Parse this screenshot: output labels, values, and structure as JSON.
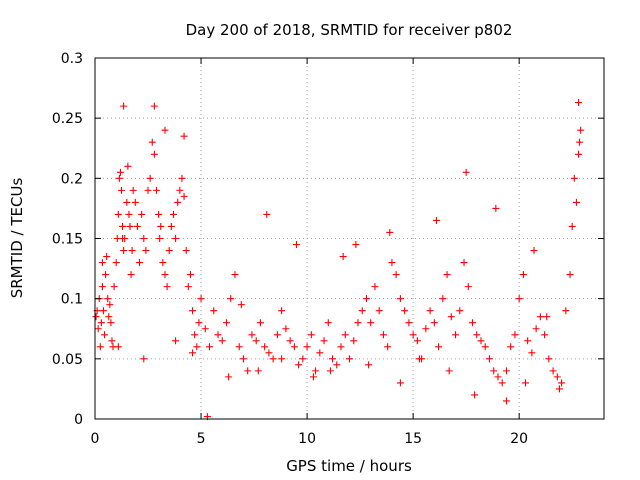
{
  "chart_data": {
    "type": "scatter",
    "title": "Day 200 of 2018, SRMTID for receiver p802",
    "xlabel": "GPS time / hours",
    "ylabel": "SRMTID / TECUs",
    "xlim": [
      0,
      24
    ],
    "ylim": [
      0,
      0.3
    ],
    "xticks": [
      0,
      5,
      10,
      15,
      20
    ],
    "xtick_labels": [
      "0",
      "5",
      "10",
      "15",
      "20"
    ],
    "yticks": [
      0,
      0.05,
      0.1,
      0.15,
      0.2,
      0.25,
      0.3
    ],
    "ytick_labels": [
      "0",
      "0.05",
      "0.1",
      "0.15",
      "0.2",
      "0.25",
      "0.3"
    ],
    "grid": true,
    "marker": "+",
    "color": "#ff0000",
    "series": [
      {
        "name": "SRMTID",
        "x": [
          0.05,
          0.1,
          0.15,
          0.2,
          0.25,
          0.3,
          0.35,
          0.4,
          0.45,
          0.5,
          0.55,
          0.6,
          0.65,
          0.7,
          0.75,
          0.8,
          0.85,
          0.9,
          1.0,
          1.05,
          1.1,
          1.15,
          1.2,
          1.25,
          1.3,
          1.35,
          1.4,
          1.5,
          1.55,
          1.6,
          1.65,
          1.7,
          1.75,
          1.8,
          1.9,
          2.0,
          2.1,
          2.2,
          2.3,
          2.4,
          2.5,
          2.6,
          2.7,
          2.8,
          2.9,
          3.0,
          3.05,
          3.1,
          3.2,
          3.3,
          3.4,
          3.5,
          3.6,
          3.7,
          3.8,
          3.9,
          4.0,
          4.1,
          4.2,
          4.3,
          4.4,
          4.5,
          4.6,
          4.7,
          4.8,
          4.9,
          5.0,
          5.2,
          5.4,
          5.6,
          5.8,
          6.0,
          6.2,
          6.4,
          6.6,
          6.8,
          7.0,
          7.2,
          7.4,
          7.6,
          7.8,
          8.0,
          8.2,
          8.4,
          8.6,
          8.8,
          9.0,
          9.2,
          9.4,
          9.6,
          9.8,
          10.0,
          10.2,
          10.4,
          10.6,
          10.8,
          11.0,
          11.2,
          11.4,
          11.6,
          11.8,
          12.0,
          12.2,
          12.4,
          12.6,
          12.8,
          13.0,
          13.2,
          13.4,
          13.6,
          13.8,
          14.0,
          14.2,
          14.4,
          14.6,
          14.8,
          15.0,
          15.2,
          15.4,
          15.6,
          15.8,
          16.0,
          16.2,
          16.4,
          16.6,
          16.8,
          17.0,
          17.2,
          17.4,
          17.6,
          17.8,
          18.0,
          18.2,
          18.4,
          18.6,
          18.8,
          19.0,
          19.2,
          19.4,
          19.6,
          19.8,
          20.0,
          20.2,
          20.4,
          20.6,
          20.8,
          21.0,
          21.2,
          21.4,
          21.6,
          21.8,
          22.0,
          22.2,
          22.4,
          22.5,
          22.6,
          22.7,
          22.8,
          22.9,
          1.3,
          1.35,
          2.8,
          3.3,
          22.85,
          22.8,
          4.2,
          17.5,
          8.1,
          5.3,
          6.9,
          9.5,
          11.7,
          12.3,
          13.9,
          16.1,
          18.9,
          20.7,
          21.3,
          0.35,
          1.1,
          2.3,
          3.8,
          4.6,
          6.3,
          7.7,
          8.8,
          10.3,
          11.1,
          12.9,
          14.4,
          15.3,
          16.7,
          17.9,
          19.4,
          20.3,
          21.9
        ],
        "y": [
          0.085,
          0.09,
          0.075,
          0.1,
          0.06,
          0.08,
          0.11,
          0.09,
          0.07,
          0.12,
          0.135,
          0.1,
          0.085,
          0.095,
          0.08,
          0.065,
          0.06,
          0.11,
          0.13,
          0.15,
          0.17,
          0.2,
          0.205,
          0.19,
          0.16,
          0.14,
          0.15,
          0.18,
          0.21,
          0.17,
          0.16,
          0.12,
          0.14,
          0.19,
          0.18,
          0.16,
          0.13,
          0.17,
          0.15,
          0.14,
          0.19,
          0.2,
          0.23,
          0.22,
          0.19,
          0.17,
          0.15,
          0.16,
          0.13,
          0.12,
          0.11,
          0.14,
          0.16,
          0.17,
          0.15,
          0.18,
          0.19,
          0.2,
          0.185,
          0.14,
          0.11,
          0.12,
          0.09,
          0.07,
          0.06,
          0.08,
          0.1,
          0.075,
          0.06,
          0.09,
          0.07,
          0.065,
          0.08,
          0.1,
          0.12,
          0.06,
          0.05,
          0.04,
          0.07,
          0.065,
          0.08,
          0.06,
          0.055,
          0.05,
          0.07,
          0.09,
          0.075,
          0.065,
          0.06,
          0.045,
          0.05,
          0.06,
          0.07,
          0.04,
          0.055,
          0.065,
          0.08,
          0.05,
          0.045,
          0.06,
          0.07,
          0.05,
          0.065,
          0.08,
          0.09,
          0.1,
          0.08,
          0.11,
          0.09,
          0.07,
          0.06,
          0.13,
          0.12,
          0.1,
          0.09,
          0.08,
          0.07,
          0.065,
          0.05,
          0.075,
          0.09,
          0.08,
          0.06,
          0.1,
          0.12,
          0.085,
          0.07,
          0.09,
          0.13,
          0.11,
          0.08,
          0.07,
          0.065,
          0.06,
          0.05,
          0.04,
          0.035,
          0.03,
          0.04,
          0.06,
          0.07,
          0.1,
          0.12,
          0.065,
          0.055,
          0.075,
          0.085,
          0.07,
          0.05,
          0.04,
          0.035,
          0.03,
          0.09,
          0.12,
          0.16,
          0.2,
          0.18,
          0.22,
          0.24,
          0.15,
          0.26,
          0.26,
          0.24,
          0.23,
          0.263,
          0.235,
          0.205,
          0.17,
          0.002,
          0.095,
          0.145,
          0.135,
          0.145,
          0.155,
          0.165,
          0.175,
          0.14,
          0.085,
          0.13,
          0.06,
          0.05,
          0.065,
          0.055,
          0.035,
          0.04,
          0.05,
          0.035,
          0.04,
          0.045,
          0.03,
          0.05,
          0.04,
          0.02,
          0.015,
          0.03,
          0.025
        ]
      }
    ]
  }
}
